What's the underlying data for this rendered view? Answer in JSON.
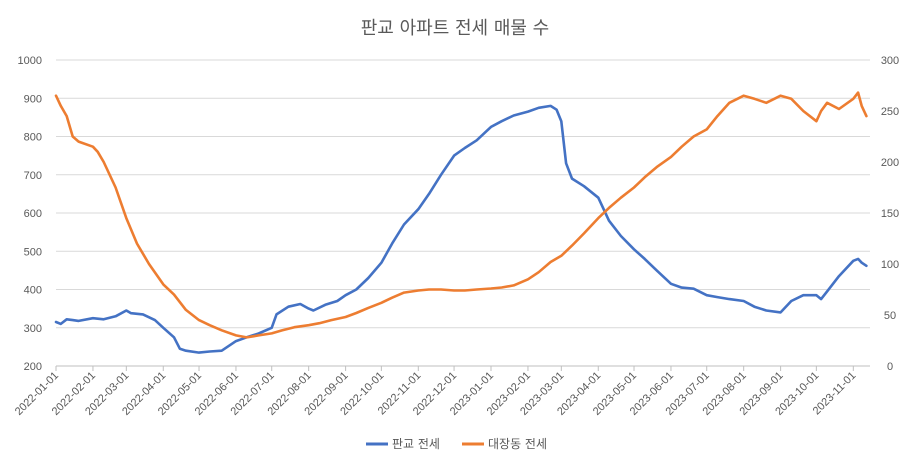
{
  "chart_data": {
    "type": "line",
    "title": "판교 아파트 전세 매물 수",
    "x_ticks": [
      "2022-01-01",
      "2022-02-01",
      "2022-03-01",
      "2022-04-01",
      "2022-05-01",
      "2022-06-01",
      "2022-07-01",
      "2022-08-01",
      "2022-09-01",
      "2022-10-01",
      "2022-11-01",
      "2022-12-01",
      "2023-01-01",
      "2023-02-01",
      "2023-03-01",
      "2023-04-01",
      "2023-05-01",
      "2023-06-01",
      "2023-07-01",
      "2023-08-01",
      "2023-09-01",
      "2023-10-01",
      "2023-11-01"
    ],
    "x_range": [
      "2022-01-01",
      "2023-11-15"
    ],
    "y_left": {
      "min": 200,
      "max": 1000,
      "ticks": [
        "200",
        "300",
        "400",
        "500",
        "600",
        "700",
        "800",
        "900",
        "1000"
      ]
    },
    "y_right": {
      "min": 0,
      "max": 300,
      "ticks": [
        "0",
        "50",
        "100",
        "150",
        "200",
        "250",
        "300"
      ]
    },
    "grid": true,
    "legend_position": "bottom",
    "series": [
      {
        "name": "판교 전세",
        "axis": "left",
        "color": "#4472C4",
        "points": [
          [
            "2022-01-01",
            315
          ],
          [
            "2022-01-05",
            310
          ],
          [
            "2022-01-10",
            322
          ],
          [
            "2022-01-15",
            320
          ],
          [
            "2022-01-20",
            318
          ],
          [
            "2022-02-01",
            325
          ],
          [
            "2022-02-10",
            322
          ],
          [
            "2022-02-20",
            330
          ],
          [
            "2022-03-01",
            345
          ],
          [
            "2022-03-05",
            338
          ],
          [
            "2022-03-15",
            335
          ],
          [
            "2022-03-25",
            320
          ],
          [
            "2022-04-01",
            300
          ],
          [
            "2022-04-10",
            275
          ],
          [
            "2022-04-15",
            245
          ],
          [
            "2022-04-20",
            240
          ],
          [
            "2022-05-01",
            235
          ],
          [
            "2022-05-10",
            238
          ],
          [
            "2022-05-20",
            240
          ],
          [
            "2022-06-01",
            265
          ],
          [
            "2022-06-10",
            275
          ],
          [
            "2022-06-20",
            285
          ],
          [
            "2022-07-01",
            300
          ],
          [
            "2022-07-05",
            335
          ],
          [
            "2022-07-15",
            355
          ],
          [
            "2022-07-25",
            362
          ],
          [
            "2022-08-01",
            350
          ],
          [
            "2022-08-05",
            345
          ],
          [
            "2022-08-15",
            360
          ],
          [
            "2022-08-25",
            370
          ],
          [
            "2022-09-01",
            385
          ],
          [
            "2022-09-10",
            400
          ],
          [
            "2022-09-20",
            430
          ],
          [
            "2022-10-01",
            470
          ],
          [
            "2022-10-10",
            520
          ],
          [
            "2022-10-20",
            570
          ],
          [
            "2022-11-01",
            610
          ],
          [
            "2022-11-10",
            650
          ],
          [
            "2022-11-20",
            700
          ],
          [
            "2022-12-01",
            750
          ],
          [
            "2022-12-10",
            770
          ],
          [
            "2022-12-20",
            790
          ],
          [
            "2023-01-01",
            825
          ],
          [
            "2023-01-10",
            840
          ],
          [
            "2023-01-20",
            855
          ],
          [
            "2023-02-01",
            865
          ],
          [
            "2023-02-10",
            875
          ],
          [
            "2023-02-20",
            880
          ],
          [
            "2023-02-25",
            870
          ],
          [
            "2023-03-01",
            840
          ],
          [
            "2023-03-05",
            730
          ],
          [
            "2023-03-10",
            690
          ],
          [
            "2023-03-20",
            670
          ],
          [
            "2023-04-01",
            640
          ],
          [
            "2023-04-10",
            580
          ],
          [
            "2023-04-20",
            540
          ],
          [
            "2023-05-01",
            505
          ],
          [
            "2023-05-10",
            480
          ],
          [
            "2023-05-20",
            450
          ],
          [
            "2023-06-01",
            415
          ],
          [
            "2023-06-10",
            405
          ],
          [
            "2023-06-20",
            402
          ],
          [
            "2023-07-01",
            385
          ],
          [
            "2023-07-10",
            380
          ],
          [
            "2023-07-20",
            375
          ],
          [
            "2023-08-01",
            370
          ],
          [
            "2023-08-10",
            355
          ],
          [
            "2023-08-20",
            345
          ],
          [
            "2023-09-01",
            340
          ],
          [
            "2023-09-10",
            370
          ],
          [
            "2023-09-20",
            385
          ],
          [
            "2023-10-01",
            385
          ],
          [
            "2023-10-05",
            375
          ],
          [
            "2023-10-10",
            395
          ],
          [
            "2023-10-20",
            435
          ],
          [
            "2023-11-01",
            475
          ],
          [
            "2023-11-05",
            480
          ],
          [
            "2023-11-08",
            470
          ],
          [
            "2023-11-12",
            462
          ]
        ]
      },
      {
        "name": "대장동 전세",
        "axis": "right",
        "color": "#ED7D31",
        "points": [
          [
            "2022-01-01",
            265
          ],
          [
            "2022-01-05",
            255
          ],
          [
            "2022-01-10",
            245
          ],
          [
            "2022-01-15",
            225
          ],
          [
            "2022-01-20",
            220
          ],
          [
            "2022-02-01",
            215
          ],
          [
            "2022-02-05",
            210
          ],
          [
            "2022-02-10",
            200
          ],
          [
            "2022-02-20",
            175
          ],
          [
            "2022-03-01",
            145
          ],
          [
            "2022-03-10",
            120
          ],
          [
            "2022-03-20",
            100
          ],
          [
            "2022-04-01",
            80
          ],
          [
            "2022-04-10",
            70
          ],
          [
            "2022-04-20",
            55
          ],
          [
            "2022-05-01",
            45
          ],
          [
            "2022-05-10",
            40
          ],
          [
            "2022-05-20",
            35
          ],
          [
            "2022-06-01",
            30
          ],
          [
            "2022-06-10",
            28
          ],
          [
            "2022-06-20",
            30
          ],
          [
            "2022-07-01",
            32
          ],
          [
            "2022-07-10",
            35
          ],
          [
            "2022-07-20",
            38
          ],
          [
            "2022-08-01",
            40
          ],
          [
            "2022-08-10",
            42
          ],
          [
            "2022-08-20",
            45
          ],
          [
            "2022-09-01",
            48
          ],
          [
            "2022-09-10",
            52
          ],
          [
            "2022-09-20",
            57
          ],
          [
            "2022-10-01",
            62
          ],
          [
            "2022-10-10",
            67
          ],
          [
            "2022-10-20",
            72
          ],
          [
            "2022-11-01",
            74
          ],
          [
            "2022-11-10",
            75
          ],
          [
            "2022-11-20",
            75
          ],
          [
            "2022-12-01",
            74
          ],
          [
            "2022-12-10",
            74
          ],
          [
            "2022-12-20",
            75
          ],
          [
            "2023-01-01",
            76
          ],
          [
            "2023-01-10",
            77
          ],
          [
            "2023-01-20",
            79
          ],
          [
            "2023-02-01",
            85
          ],
          [
            "2023-02-10",
            92
          ],
          [
            "2023-02-20",
            102
          ],
          [
            "2023-03-01",
            108
          ],
          [
            "2023-03-10",
            118
          ],
          [
            "2023-03-20",
            130
          ],
          [
            "2023-04-01",
            145
          ],
          [
            "2023-04-10",
            155
          ],
          [
            "2023-04-20",
            165
          ],
          [
            "2023-05-01",
            175
          ],
          [
            "2023-05-10",
            185
          ],
          [
            "2023-05-20",
            195
          ],
          [
            "2023-06-01",
            205
          ],
          [
            "2023-06-10",
            215
          ],
          [
            "2023-06-20",
            225
          ],
          [
            "2023-07-01",
            232
          ],
          [
            "2023-07-10",
            245
          ],
          [
            "2023-07-20",
            258
          ],
          [
            "2023-08-01",
            265
          ],
          [
            "2023-08-10",
            262
          ],
          [
            "2023-08-20",
            258
          ],
          [
            "2023-09-01",
            265
          ],
          [
            "2023-09-10",
            262
          ],
          [
            "2023-09-20",
            250
          ],
          [
            "2023-10-01",
            240
          ],
          [
            "2023-10-05",
            250
          ],
          [
            "2023-10-10",
            258
          ],
          [
            "2023-10-20",
            252
          ],
          [
            "2023-11-01",
            262
          ],
          [
            "2023-11-05",
            268
          ],
          [
            "2023-11-08",
            255
          ],
          [
            "2023-11-12",
            245
          ]
        ]
      }
    ]
  }
}
